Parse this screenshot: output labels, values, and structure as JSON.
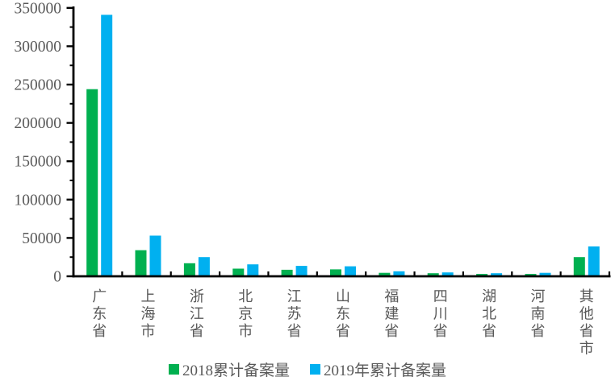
{
  "chart_data": {
    "type": "bar",
    "title": "",
    "xlabel": "",
    "ylabel": "",
    "categories": [
      "广东省",
      "上海市",
      "浙江省",
      "北京市",
      "江苏省",
      "山东省",
      "福建省",
      "四川省",
      "湖北省",
      "河南省",
      "其他省市"
    ],
    "series": [
      {
        "name": "2018累计备案量",
        "color": "#00B050",
        "values": [
          244000,
          34000,
          17000,
          10000,
          8500,
          9000,
          4500,
          4000,
          3000,
          3000,
          25000
        ]
      },
      {
        "name": "2019年累计备案量",
        "color": "#00B0F0",
        "values": [
          341000,
          53000,
          25000,
          15500,
          13500,
          13000,
          6500,
          5000,
          4000,
          4500,
          39000
        ]
      }
    ],
    "ylim": [
      0,
      350000
    ],
    "y_major_tick": 50000,
    "y_minor_tick": 25000,
    "y_tick_labels": [
      "0",
      "50000",
      "100000",
      "150000",
      "200000",
      "250000",
      "300000",
      "350000"
    ],
    "grid": false,
    "legend_position": "bottom",
    "colors": {
      "axis": "#000000",
      "tick_label": "#595959",
      "background": "#FFFFFF"
    }
  }
}
